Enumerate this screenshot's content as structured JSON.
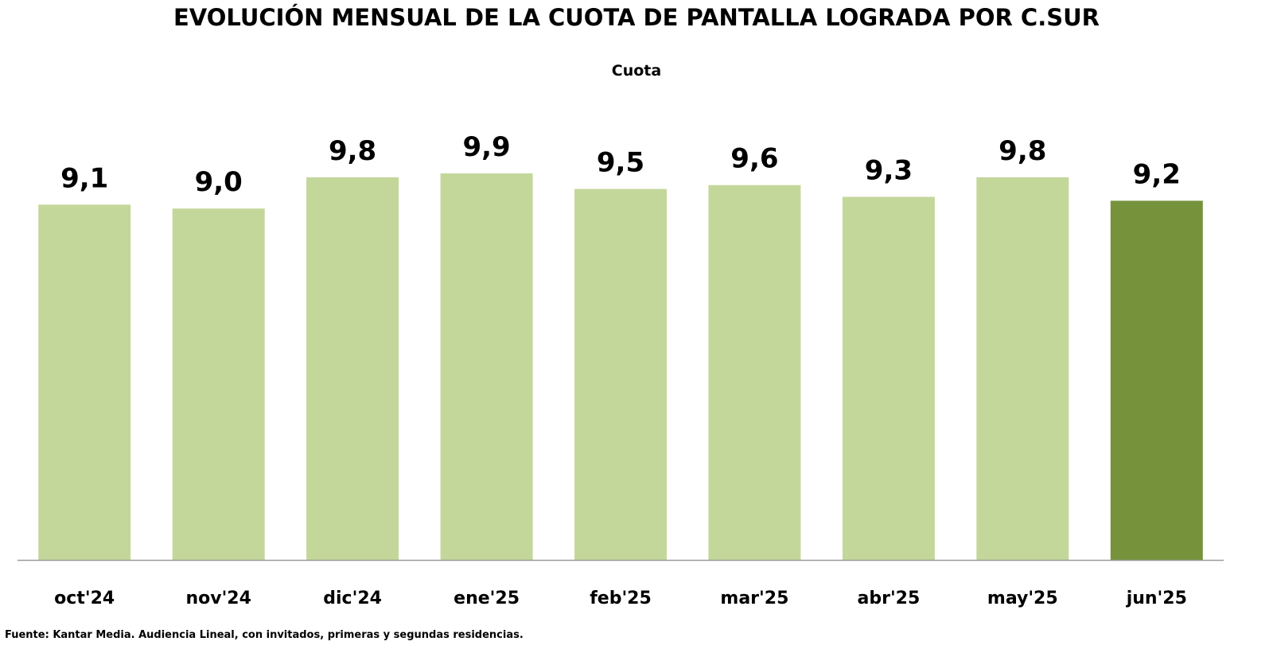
{
  "chart_data": {
    "type": "bar",
    "title": "EVOLUCIÓN MENSUAL DE LA CUOTA DE PANTALLA LOGRADA POR C.SUR",
    "subtitle": "Cuota",
    "categories": [
      "oct'24",
      "nov'24",
      "dic'24",
      "ene'25",
      "feb'25",
      "mar'25",
      "abr'25",
      "may'25",
      "jun'25"
    ],
    "values": [
      9.1,
      9.0,
      9.8,
      9.9,
      9.5,
      9.6,
      9.3,
      9.8,
      9.2
    ],
    "value_labels": [
      "9,1",
      "9,0",
      "9,8",
      "9,9",
      "9,5",
      "9,6",
      "9,3",
      "9,8",
      "9,2"
    ],
    "ylim": [
      0,
      9.9
    ],
    "grid": false,
    "bar_color": "#c4d79b",
    "highlight_color": "#76933c",
    "highlight_category": "jun'25"
  },
  "footer": {
    "source": "Fuente: Kantar Media. Audiencia Lineal, con invitados, primeras y segundas residencias."
  }
}
